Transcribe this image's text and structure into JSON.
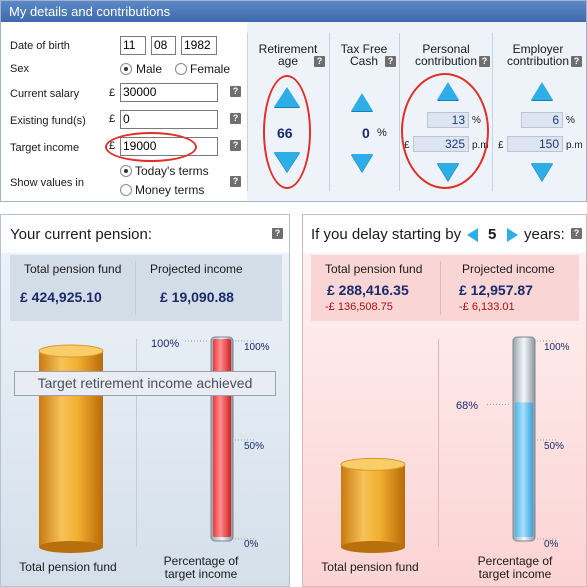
{
  "details": {
    "header": "My details and contributions",
    "labels": {
      "dob": "Date of birth",
      "sex": "Sex",
      "salary": "Current salary",
      "existing": "Existing fund(s)",
      "target": "Target income",
      "show": "Show values in"
    },
    "dob_day": "11",
    "dob_month": "08",
    "dob_year": "1982",
    "sex_options": [
      "Male",
      "Female"
    ],
    "sex_selected": "Male",
    "currency_symbol": "£",
    "salary": "30000",
    "existing": "0",
    "target_income": "19000",
    "show_options": [
      "Today's terms",
      "Money terms"
    ],
    "show_selected": "Today's terms",
    "help_glyph": "?"
  },
  "controls": {
    "retirement": {
      "title_line1": "Retirement",
      "title_line2": "age",
      "value": "66"
    },
    "taxfree": {
      "title_line1": "Tax Free",
      "title_line2": "Cash",
      "value": "0",
      "unit": "%"
    },
    "personal": {
      "title_line1": "Personal",
      "title_line2": "contribution",
      "percent": "13",
      "percent_unit": "%",
      "currency": "£",
      "amount": "325",
      "amount_unit": "p.m"
    },
    "employer": {
      "title_line1": "Employer",
      "title_line2": "contribution",
      "percent": "6",
      "percent_unit": "%",
      "currency": "£",
      "amount": "150",
      "amount_unit": "p.m"
    }
  },
  "current": {
    "title": "Your current pension:",
    "fund_label": "Total pension fund",
    "fund_value": "£ 424,925.10",
    "income_label": "Projected income",
    "income_value": "£ 19,090.88",
    "tooltip": "Target retirement income achieved",
    "footer_fund": "Total pension fund",
    "footer_pct_line1": "Percentage of",
    "footer_pct_line2": "target income",
    "gauge_percent": 100,
    "gauge_label": "100%",
    "ticks": [
      "100%",
      "50%",
      "0%"
    ],
    "fund_level": 1.0
  },
  "delay": {
    "title_prefix": "If you delay starting by",
    "years": "5",
    "title_suffix": "years:",
    "fund_label": "Total pension fund",
    "fund_value": "£ 288,416.35",
    "fund_delta": "-£ 136,508.75",
    "income_label": "Projected income",
    "income_value": "£ 12,957.87",
    "income_delta": "-£ 6,133.01",
    "footer_fund": "Total pension fund",
    "footer_pct_line1": "Percentage of",
    "footer_pct_line2": "target income",
    "gauge_percent": 68,
    "gauge_label": "68%",
    "ticks": [
      "100%",
      "50%",
      "0%"
    ],
    "fund_level": 0.68
  },
  "colors": {
    "accent_blue": "#2eaee6",
    "header_blue": "#4a78b8",
    "highlight_red": "#e0302a",
    "gold": "#e8a530",
    "gauge_red": "#f05050",
    "gauge_blue": "#6fc6ee"
  }
}
